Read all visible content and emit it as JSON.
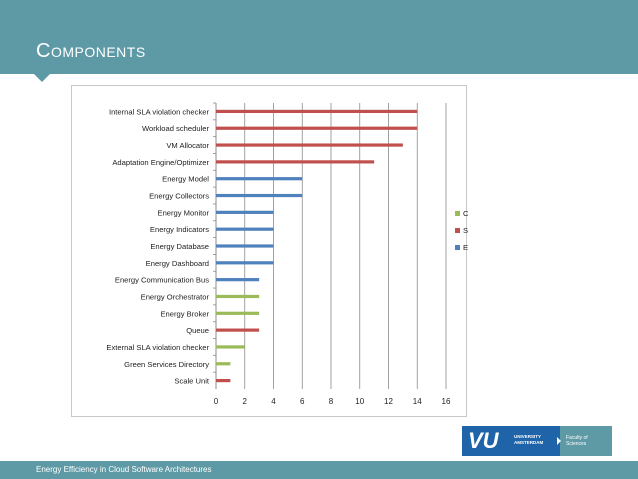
{
  "slide": {
    "title": "Components",
    "footer": "Energy Efficiency in Cloud Software Architectures"
  },
  "logo": {
    "mark": "VU",
    "university": [
      "UNIVERSITY",
      "AMSTERDAM"
    ],
    "faculty": [
      "Faculty of",
      "Sciences"
    ]
  },
  "colors": {
    "header": "#5e9aa6",
    "cloud_federation": "#9bbb59",
    "self_adaptation": "#c0504d",
    "energy_monitoring": "#4f81bd"
  },
  "chart_data": {
    "type": "bar",
    "orientation": "horizontal",
    "grid": true,
    "xlim": [
      0,
      16
    ],
    "xticks": [
      0,
      2,
      4,
      6,
      8,
      10,
      12,
      14,
      16
    ],
    "legend_position": "right",
    "legend": [
      "Cloud Federation",
      "Self-Adaptation",
      "Energy Monitoring"
    ],
    "bars": [
      {
        "label": "Internal SLA violation checker",
        "value": 14,
        "series": "Self-Adaptation"
      },
      {
        "label": "Workload scheduler",
        "value": 14,
        "series": "Self-Adaptation"
      },
      {
        "label": "VM Allocator",
        "value": 13,
        "series": "Self-Adaptation"
      },
      {
        "label": "Adaptation Engine/Optimizer",
        "value": 11,
        "series": "Self-Adaptation"
      },
      {
        "label": "Energy Model",
        "value": 6,
        "series": "Energy Monitoring"
      },
      {
        "label": "Energy Collectors",
        "value": 6,
        "series": "Energy Monitoring"
      },
      {
        "label": "Energy Monitor",
        "value": 4,
        "series": "Energy Monitoring"
      },
      {
        "label": "Energy Indicators",
        "value": 4,
        "series": "Energy Monitoring"
      },
      {
        "label": "Energy Database",
        "value": 4,
        "series": "Energy Monitoring"
      },
      {
        "label": "Energy Dashboard",
        "value": 4,
        "series": "Energy Monitoring"
      },
      {
        "label": "Energy Communication Bus",
        "value": 3,
        "series": "Energy Monitoring"
      },
      {
        "label": "Energy Orchestrator",
        "value": 3,
        "series": "Cloud Federation"
      },
      {
        "label": "Energy Broker",
        "value": 3,
        "series": "Cloud Federation"
      },
      {
        "label": "Queue",
        "value": 3,
        "series": "Self-Adaptation"
      },
      {
        "label": "External SLA violation checker",
        "value": 2,
        "series": "Cloud Federation"
      },
      {
        "label": "Green Services Directory",
        "value": 1,
        "series": "Cloud Federation"
      },
      {
        "label": "Scale Unit",
        "value": 1,
        "series": "Self-Adaptation"
      }
    ]
  }
}
